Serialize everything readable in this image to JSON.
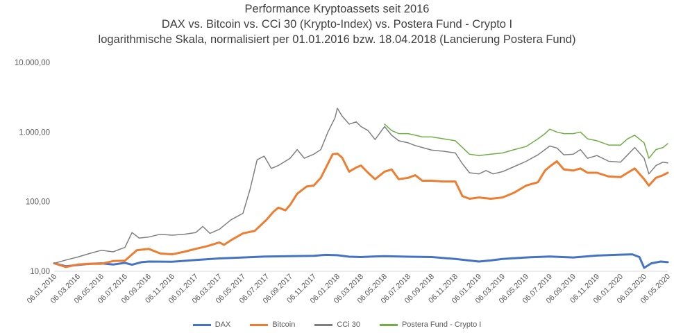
{
  "chart_data": {
    "type": "line",
    "title_lines": [
      "Performance Kryptoassets seit 2016",
      "DAX vs. Bitcoin vs. CCi 30 (Krypto-Index) vs. Postera Fund - Crypto I",
      "logarithmische Skala, normalisiert per 01.01.2016 bzw. 18.04.2018 (Lancierung Postera Fund)"
    ],
    "y_scale": "log",
    "ylim": [
      10,
      10000
    ],
    "y_ticks": [
      10,
      100,
      1000,
      10000
    ],
    "y_tick_labels": [
      "10,00",
      "100,00",
      "1.000,00",
      "10.000,00"
    ],
    "x_tick_labels": [
      "06.01.2016",
      "06.03.2016",
      "06.05.2016",
      "06.07.2016",
      "06.09.2016",
      "06.11.2016",
      "06.01.2017",
      "06.03.2017",
      "06.05.2017",
      "06.07.2017",
      "06.09.2017",
      "06.11.2017",
      "06.01.2018",
      "06.03.2018",
      "06.05.2018",
      "06.07.2018",
      "06.09.2018",
      "06.11.2018",
      "06.01.2019",
      "06.03.2019",
      "06.05.2019",
      "06.07.2019",
      "06.09.2019",
      "06.11.2019",
      "06.01.2020",
      "06.03.2020",
      "06.05.2020"
    ],
    "x_range": [
      0,
      26
    ],
    "series": [
      {
        "name": "DAX",
        "color": "#4472C4",
        "points": [
          [
            0,
            13
          ],
          [
            0.5,
            11.8
          ],
          [
            1,
            12.3
          ],
          [
            1.5,
            12.8
          ],
          [
            2,
            13
          ],
          [
            2.5,
            12.5
          ],
          [
            3,
            13.2
          ],
          [
            3.3,
            12.4
          ],
          [
            3.7,
            13.5
          ],
          [
            4,
            13.8
          ],
          [
            5,
            13.7
          ],
          [
            6,
            14.5
          ],
          [
            7,
            15.3
          ],
          [
            8,
            15.8
          ],
          [
            9,
            16.3
          ],
          [
            10,
            16.5
          ],
          [
            11,
            16.7
          ],
          [
            11.5,
            17.2
          ],
          [
            12,
            17
          ],
          [
            12.5,
            16.2
          ],
          [
            13,
            16
          ],
          [
            13.5,
            16.3
          ],
          [
            14,
            16.5
          ],
          [
            15,
            16.2
          ],
          [
            16,
            16
          ],
          [
            17,
            15
          ],
          [
            18,
            13.8
          ],
          [
            18.5,
            14.3
          ],
          [
            19,
            15
          ],
          [
            20,
            15.8
          ],
          [
            21,
            16.3
          ],
          [
            22,
            15.8
          ],
          [
            22.5,
            16.3
          ],
          [
            23,
            16.8
          ],
          [
            24,
            17.3
          ],
          [
            24.5,
            17.5
          ],
          [
            24.8,
            16
          ],
          [
            25,
            11.2
          ],
          [
            25.3,
            13
          ],
          [
            25.7,
            13.8
          ],
          [
            26,
            13.5
          ]
        ]
      },
      {
        "name": "Bitcoin",
        "color": "#ED7D31",
        "points": [
          [
            0,
            13
          ],
          [
            0.5,
            11.5
          ],
          [
            1,
            12.5
          ],
          [
            1.5,
            12.8
          ],
          [
            2,
            12.8
          ],
          [
            2.5,
            14
          ],
          [
            3,
            14.2
          ],
          [
            3.5,
            20
          ],
          [
            4,
            21
          ],
          [
            4.5,
            18
          ],
          [
            5,
            17.5
          ],
          [
            5.5,
            19
          ],
          [
            6,
            21
          ],
          [
            6.5,
            23
          ],
          [
            7,
            26
          ],
          [
            7.2,
            24
          ],
          [
            7.5,
            28
          ],
          [
            8,
            35
          ],
          [
            8.5,
            38
          ],
          [
            9,
            55
          ],
          [
            9.3,
            72
          ],
          [
            9.5,
            82
          ],
          [
            9.8,
            75
          ],
          [
            10,
            90
          ],
          [
            10.3,
            130
          ],
          [
            10.7,
            165
          ],
          [
            11,
            170
          ],
          [
            11.3,
            220
          ],
          [
            11.5,
            300
          ],
          [
            11.8,
            480
          ],
          [
            12,
            490
          ],
          [
            12.2,
            430
          ],
          [
            12.5,
            270
          ],
          [
            12.8,
            310
          ],
          [
            13,
            330
          ],
          [
            13.3,
            260
          ],
          [
            13.6,
            210
          ],
          [
            14,
            270
          ],
          [
            14.3,
            290
          ],
          [
            14.6,
            210
          ],
          [
            15,
            220
          ],
          [
            15.3,
            240
          ],
          [
            15.6,
            200
          ],
          [
            16,
            200
          ],
          [
            16.5,
            195
          ],
          [
            17,
            195
          ],
          [
            17.3,
            120
          ],
          [
            17.6,
            110
          ],
          [
            18,
            115
          ],
          [
            18.5,
            110
          ],
          [
            19,
            115
          ],
          [
            19.5,
            135
          ],
          [
            20,
            170
          ],
          [
            20.5,
            190
          ],
          [
            20.8,
            280
          ],
          [
            21,
            320
          ],
          [
            21.3,
            380
          ],
          [
            21.6,
            290
          ],
          [
            22,
            280
          ],
          [
            22.3,
            300
          ],
          [
            22.6,
            260
          ],
          [
            23,
            260
          ],
          [
            23.5,
            230
          ],
          [
            24,
            225
          ],
          [
            24.3,
            260
          ],
          [
            24.6,
            300
          ],
          [
            25,
            210
          ],
          [
            25.2,
            170
          ],
          [
            25.5,
            220
          ],
          [
            25.8,
            240
          ],
          [
            26,
            260
          ]
        ]
      },
      {
        "name": "CCi 30",
        "color": "#7F7F7F",
        "points": [
          [
            0,
            13
          ],
          [
            0.5,
            14.5
          ],
          [
            1,
            16
          ],
          [
            1.5,
            18
          ],
          [
            2,
            20
          ],
          [
            2.5,
            19
          ],
          [
            3,
            22
          ],
          [
            3.3,
            36
          ],
          [
            3.6,
            30
          ],
          [
            4,
            31
          ],
          [
            4.5,
            34
          ],
          [
            5,
            33
          ],
          [
            5.5,
            34
          ],
          [
            6,
            36
          ],
          [
            6.3,
            44
          ],
          [
            6.6,
            35
          ],
          [
            7,
            40
          ],
          [
            7.5,
            55
          ],
          [
            8,
            68
          ],
          [
            8.3,
            150
          ],
          [
            8.6,
            400
          ],
          [
            8.9,
            450
          ],
          [
            9.2,
            300
          ],
          [
            9.5,
            330
          ],
          [
            10,
            420
          ],
          [
            10.3,
            560
          ],
          [
            10.6,
            420
          ],
          [
            11,
            480
          ],
          [
            11.3,
            560
          ],
          [
            11.6,
            1000
          ],
          [
            11.9,
            1600
          ],
          [
            12,
            2200
          ],
          [
            12.2,
            1700
          ],
          [
            12.5,
            1300
          ],
          [
            12.8,
            1400
          ],
          [
            13,
            1200
          ],
          [
            13.3,
            1050
          ],
          [
            13.6,
            780
          ],
          [
            14,
            1200
          ],
          [
            14.3,
            900
          ],
          [
            14.6,
            750
          ],
          [
            15,
            700
          ],
          [
            15.3,
            640
          ],
          [
            15.6,
            600
          ],
          [
            16,
            550
          ],
          [
            16.5,
            530
          ],
          [
            17,
            500
          ],
          [
            17.3,
            350
          ],
          [
            17.6,
            260
          ],
          [
            18,
            250
          ],
          [
            18.3,
            280
          ],
          [
            18.6,
            250
          ],
          [
            19,
            270
          ],
          [
            19.5,
            320
          ],
          [
            20,
            380
          ],
          [
            20.5,
            470
          ],
          [
            20.8,
            560
          ],
          [
            21,
            630
          ],
          [
            21.3,
            590
          ],
          [
            21.6,
            470
          ],
          [
            22,
            480
          ],
          [
            22.3,
            560
          ],
          [
            22.6,
            420
          ],
          [
            23,
            460
          ],
          [
            23.5,
            380
          ],
          [
            24,
            370
          ],
          [
            24.3,
            470
          ],
          [
            24.6,
            600
          ],
          [
            25,
            420
          ],
          [
            25.2,
            250
          ],
          [
            25.5,
            330
          ],
          [
            25.8,
            370
          ],
          [
            26,
            360
          ]
        ]
      },
      {
        "name": "Postera Fund - Crypto I",
        "color": "#70AD47",
        "points": [
          [
            14,
            1300
          ],
          [
            14.3,
            1050
          ],
          [
            14.6,
            950
          ],
          [
            15,
            950
          ],
          [
            15.3,
            900
          ],
          [
            15.6,
            850
          ],
          [
            16,
            850
          ],
          [
            16.5,
            800
          ],
          [
            17,
            750
          ],
          [
            17.3,
            600
          ],
          [
            17.6,
            480
          ],
          [
            18,
            460
          ],
          [
            18.5,
            480
          ],
          [
            19,
            500
          ],
          [
            19.5,
            560
          ],
          [
            20,
            620
          ],
          [
            20.5,
            800
          ],
          [
            20.8,
            950
          ],
          [
            21,
            1100
          ],
          [
            21.3,
            1000
          ],
          [
            21.6,
            950
          ],
          [
            22,
            950
          ],
          [
            22.3,
            1000
          ],
          [
            22.6,
            800
          ],
          [
            23,
            750
          ],
          [
            23.5,
            650
          ],
          [
            24,
            650
          ],
          [
            24.3,
            800
          ],
          [
            24.6,
            900
          ],
          [
            25,
            700
          ],
          [
            25.2,
            420
          ],
          [
            25.5,
            560
          ],
          [
            25.8,
            600
          ],
          [
            26,
            680
          ]
        ]
      }
    ]
  }
}
